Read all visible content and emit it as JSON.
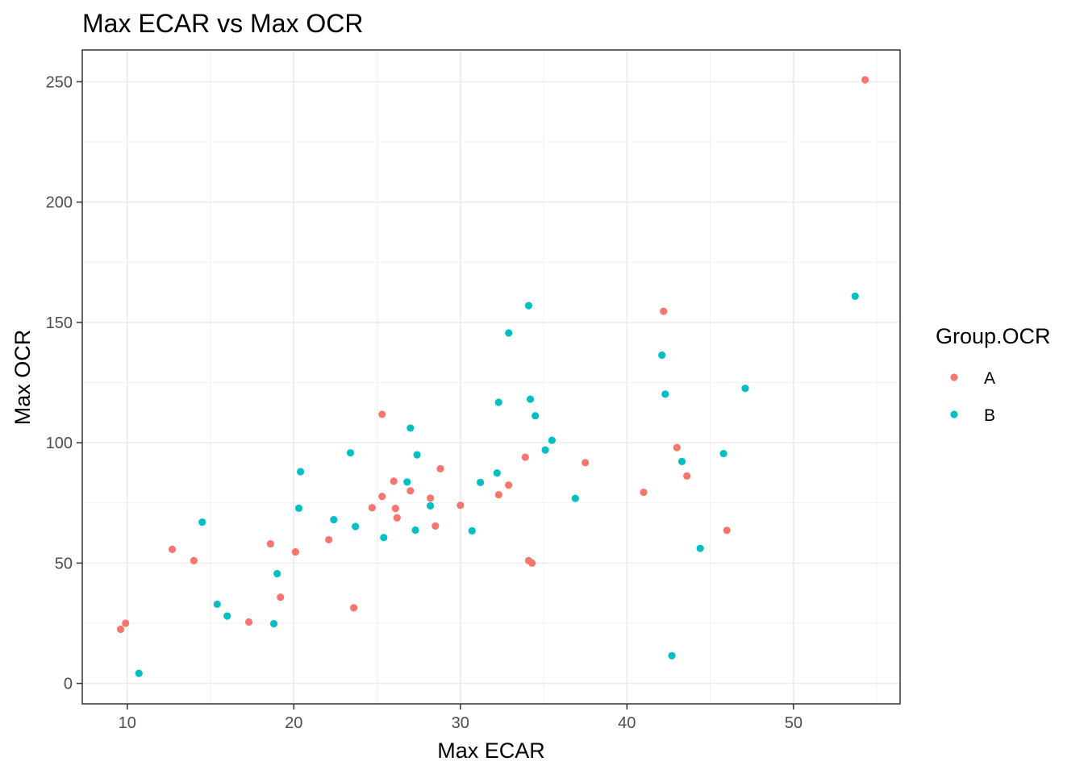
{
  "chart_data": {
    "type": "scatter",
    "title": "Max ECAR vs Max OCR",
    "xlabel": "Max ECAR",
    "ylabel": "Max OCR",
    "xlim": [
      7.3,
      56.4
    ],
    "ylim": [
      -8.5,
      263.2
    ],
    "x_ticks": [
      10,
      20,
      30,
      40,
      50
    ],
    "y_ticks": [
      0,
      50,
      100,
      150,
      200,
      250
    ],
    "grid": true,
    "legend": {
      "title": "Group.OCR",
      "position": "right"
    },
    "series": [
      {
        "name": "A",
        "color": "#F8766D",
        "points": [
          [
            9.6,
            22.5
          ],
          [
            9.9,
            25.0
          ],
          [
            12.7,
            55.7
          ],
          [
            14.0,
            51.0
          ],
          [
            17.3,
            25.5
          ],
          [
            18.6,
            58.0
          ],
          [
            19.2,
            35.8
          ],
          [
            20.1,
            54.6
          ],
          [
            22.1,
            59.7
          ],
          [
            23.6,
            31.4
          ],
          [
            24.7,
            73.0
          ],
          [
            25.3,
            77.7
          ],
          [
            25.3,
            111.8
          ],
          [
            26.0,
            84.0
          ],
          [
            26.1,
            72.7
          ],
          [
            26.2,
            68.8
          ],
          [
            27.0,
            80.0
          ],
          [
            28.2,
            77.0
          ],
          [
            28.5,
            65.4
          ],
          [
            28.8,
            89.2
          ],
          [
            30.0,
            74.0
          ],
          [
            32.3,
            78.4
          ],
          [
            32.9,
            82.4
          ],
          [
            33.9,
            94.0
          ],
          [
            34.1,
            51.0
          ],
          [
            34.3,
            50.0
          ],
          [
            37.5,
            91.7
          ],
          [
            41.0,
            79.4
          ],
          [
            42.2,
            154.6
          ],
          [
            43.0,
            98.0
          ],
          [
            43.6,
            86.2
          ],
          [
            46.0,
            63.6
          ],
          [
            54.3,
            250.8
          ]
        ]
      },
      {
        "name": "B",
        "color": "#00BFC4",
        "points": [
          [
            10.7,
            4.2
          ],
          [
            14.5,
            67.0
          ],
          [
            15.4,
            32.9
          ],
          [
            16.0,
            28.0
          ],
          [
            18.8,
            24.8
          ],
          [
            19.0,
            45.6
          ],
          [
            20.3,
            72.8
          ],
          [
            20.4,
            88.0
          ],
          [
            22.4,
            68.0
          ],
          [
            23.4,
            95.8
          ],
          [
            23.7,
            65.2
          ],
          [
            25.4,
            60.6
          ],
          [
            26.8,
            83.7
          ],
          [
            27.0,
            106.1
          ],
          [
            27.3,
            63.7
          ],
          [
            27.4,
            95.0
          ],
          [
            28.2,
            73.8
          ],
          [
            30.7,
            63.4
          ],
          [
            31.2,
            83.5
          ],
          [
            32.2,
            87.4
          ],
          [
            32.3,
            116.8
          ],
          [
            32.9,
            145.6
          ],
          [
            34.1,
            157.0
          ],
          [
            34.2,
            118.1
          ],
          [
            34.5,
            111.2
          ],
          [
            35.1,
            97.0
          ],
          [
            35.5,
            101.0
          ],
          [
            36.9,
            76.9
          ],
          [
            42.1,
            136.4
          ],
          [
            42.3,
            120.2
          ],
          [
            42.7,
            11.5
          ],
          [
            43.3,
            92.2
          ],
          [
            44.4,
            56.1
          ],
          [
            45.8,
            95.5
          ],
          [
            47.1,
            122.6
          ],
          [
            53.7,
            160.9
          ]
        ]
      }
    ]
  }
}
